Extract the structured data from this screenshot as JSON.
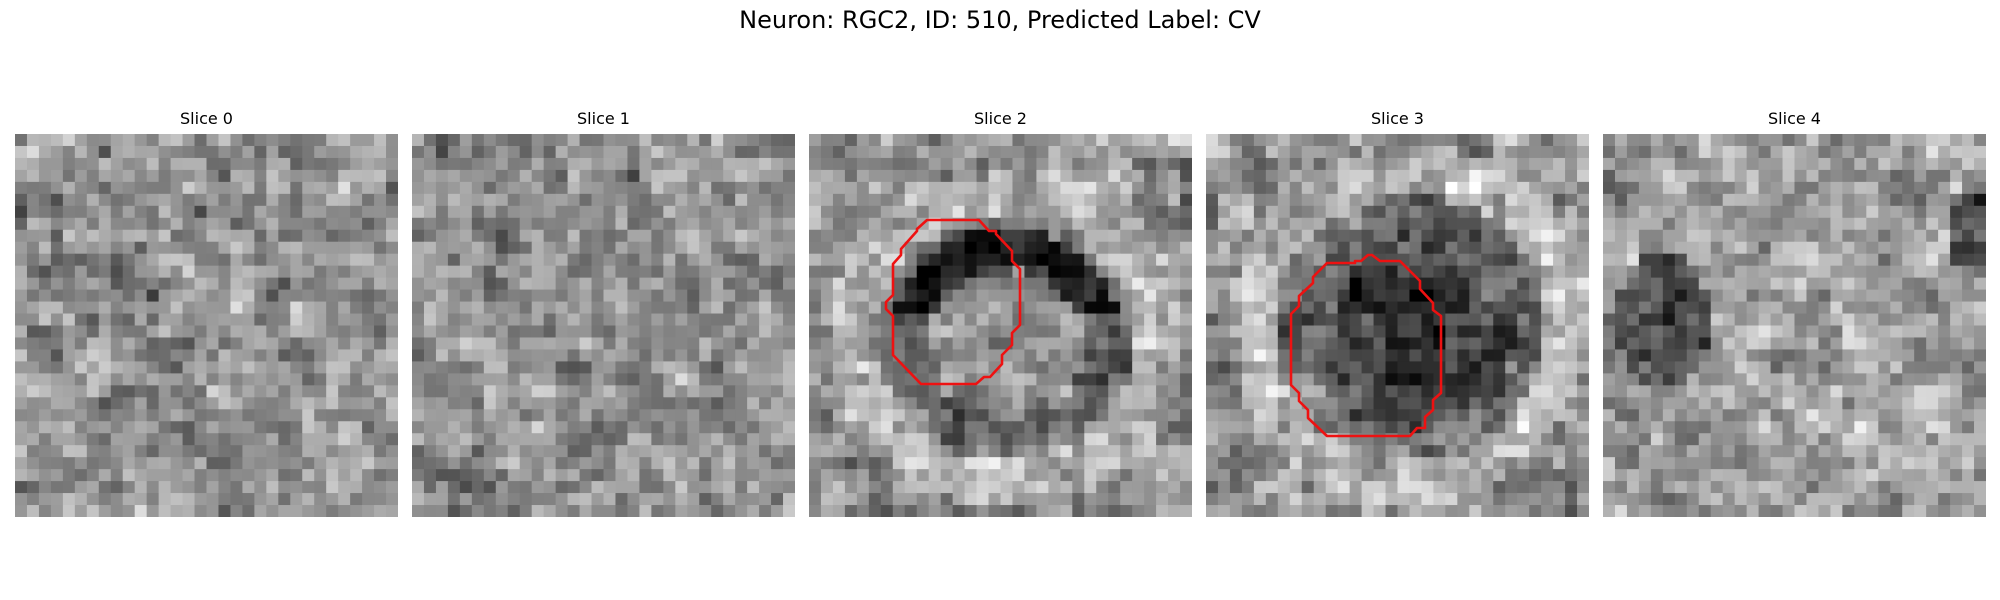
{
  "figure": {
    "title": "Neuron: RGC2, ID: 510, Predicted Label: CV"
  },
  "panels": [
    {
      "title": "Slice 0",
      "seed": 11,
      "contour": false,
      "feature": "none"
    },
    {
      "title": "Slice 1",
      "seed": 23,
      "contour": false,
      "feature": "none"
    },
    {
      "title": "Slice 2",
      "seed": 37,
      "contour": true,
      "feature": "ring"
    },
    {
      "title": "Slice 3",
      "seed": 53,
      "contour": true,
      "feature": "dark-blob"
    },
    {
      "title": "Slice 4",
      "seed": 71,
      "contour": false,
      "feature": "left-dark"
    }
  ],
  "colors": {
    "contour": "#ee1111",
    "background": "#ffffff"
  }
}
